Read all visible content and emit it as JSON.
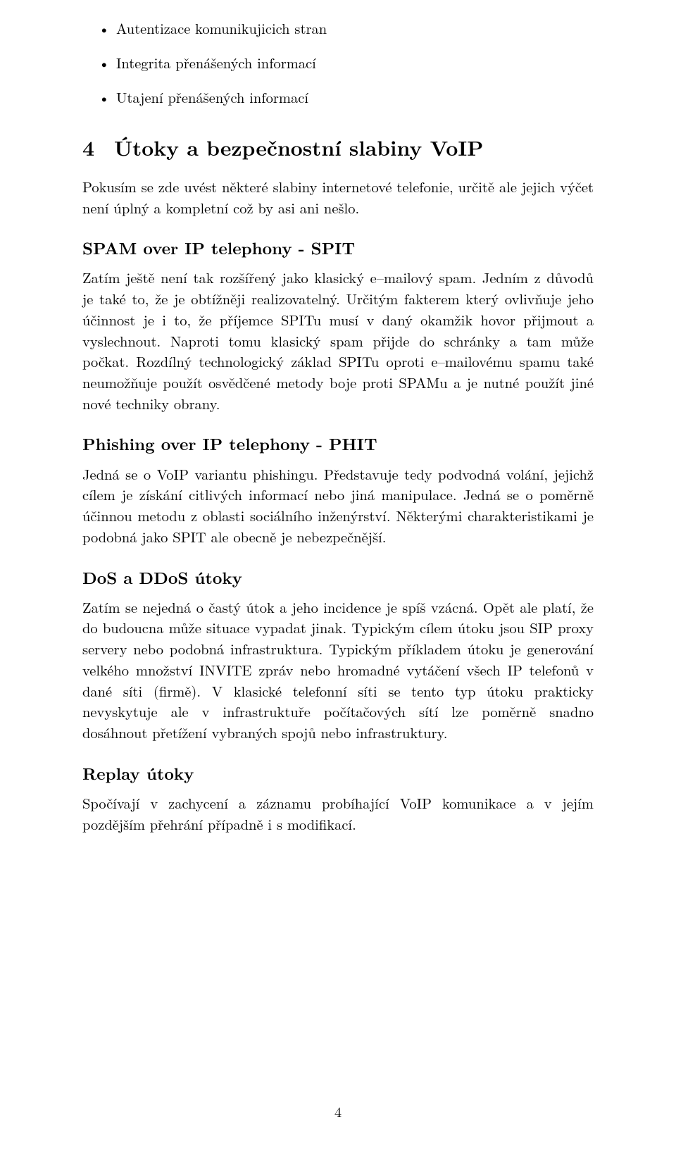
{
  "bullets": {
    "items": [
      "Autentizace komunikujicich stran",
      "Integrita přenášených informací",
      "Utajení přenášených informací"
    ]
  },
  "section4": {
    "number": "4",
    "title": "Útoky a bezpečnostní slabiny VoIP",
    "intro": "Pokusím se zde uvést některé slabiny internetové telefonie, určitě ale jejich výčet není úplný a kompletní což by asi ani nešlo."
  },
  "spit": {
    "heading": "SPAM over IP telephony - SPIT",
    "body": "Zatím ještě není tak rozšířený jako klasický e–mailový spam. Jedním z důvodů je také to, že je obtížněji realizovatelný. Určitým fakterem který ovlivňuje jeho účinnost je i to, že příjemce SPITu musí v daný okamžik hovor přijmout a vyslechnout. Naproti tomu klasický spam přijde do schránky a tam může počkat. Rozdílný technologický základ SPITu oproti e–mailovému spamu také neumožňuje použít osvědčené metody boje proti SPAMu a je nutné použít jiné nové techniky obrany."
  },
  "phit": {
    "heading": "Phishing over IP telephony - PHIT",
    "body": "Jedná se o VoIP variantu phishingu. Představuje tedy podvodná volání, jejichž cílem je získání citlivých informací nebo jiná manipulace. Jedná se o poměrně účinnou metodu z oblasti sociálního inženýrství. Některými charakteristikami je podobná jako SPIT ale obecně je nebezpečnější."
  },
  "dos": {
    "heading": "DoS a DDoS útoky",
    "body": "Zatím se nejedná o častý útok a jeho incidence je spíš vzácná. Opět ale platí, že do budoucna může situace vypadat jinak. Typickým cílem útoku jsou SIP proxy servery nebo podobná infrastruktura. Typickým příkladem útoku je generování velkého množství INVITE zpráv nebo hromadné vytáčení všech IP telefonů v dané síti (firmě). V klasické telefonní síti se tento typ útoku prakticky nevyskytuje ale v infrastruktuře počítačových sítí lze poměrně snadno dosáhnout přetížení vybraných spojů nebo infrastruktury."
  },
  "replay": {
    "heading": "Replay útoky",
    "body": "Spočívají v zachycení a záznamu probíhající VoIP komunikace a v jejím pozdějším přehrání případně i s modifikací."
  },
  "pagenum": "4"
}
